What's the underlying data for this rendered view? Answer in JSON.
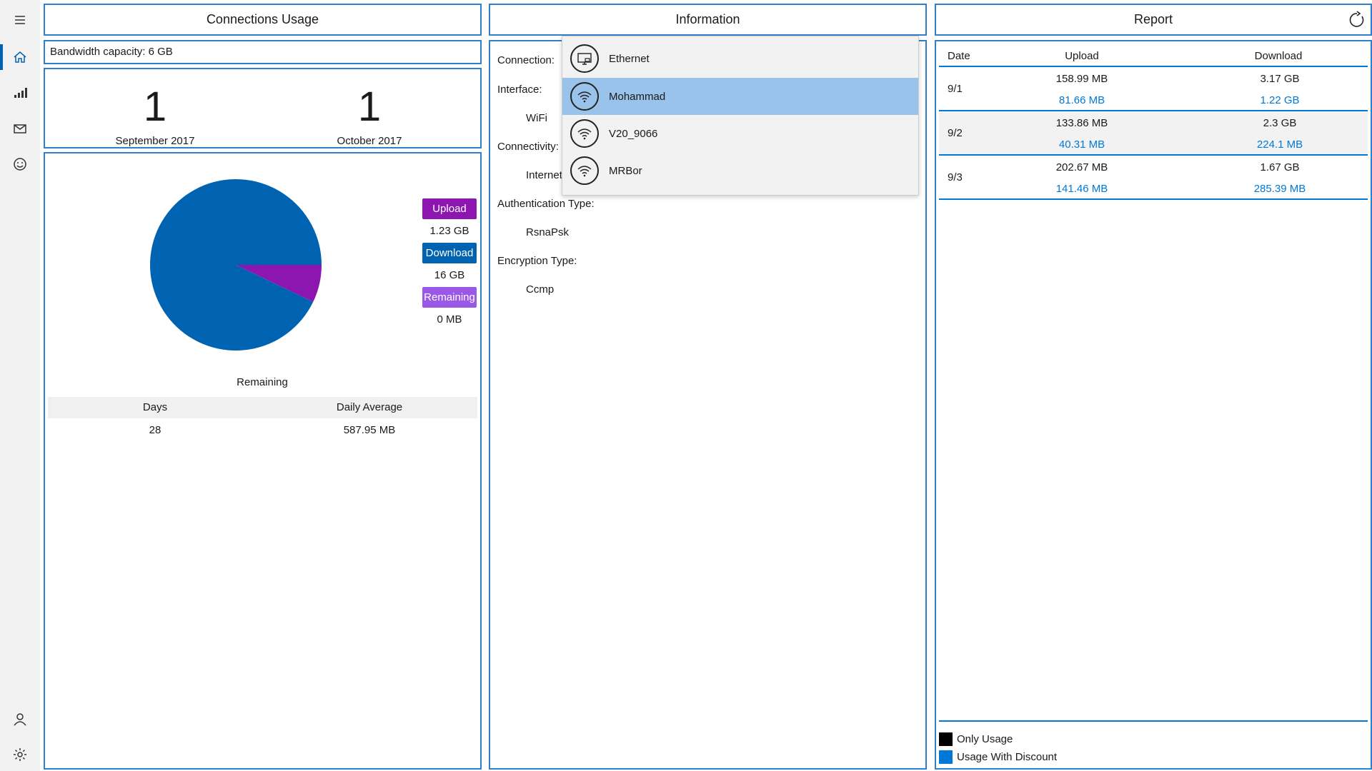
{
  "nav": {
    "items": [
      {
        "icon": "hamburger-icon"
      },
      {
        "icon": "home-icon"
      },
      {
        "icon": "signal-bars-icon"
      },
      {
        "icon": "mail-icon"
      },
      {
        "icon": "smiley-icon"
      },
      {
        "icon": "person-icon"
      },
      {
        "icon": "gear-icon"
      }
    ]
  },
  "usage": {
    "header": "Connections Usage",
    "bandwidth": "Bandwidth capacity: 6 GB",
    "counter1": {
      "value": "1",
      "label": "September 2017"
    },
    "counter2": {
      "value": "1",
      "label": "October 2017"
    },
    "legend": {
      "upload_label": "Upload",
      "upload_value": "1.23 GB",
      "download_label": "Download",
      "download_value": "16 GB",
      "remaining_label": "Remaining",
      "remaining_value": "0 MB"
    },
    "chart_caption": "Remaining",
    "stats": {
      "headers": [
        "Days",
        "Daily Average"
      ],
      "values": [
        "28",
        "587.95 MB"
      ]
    },
    "colors": {
      "upload": "#8e16b0",
      "download": "#0063b1",
      "remaining": "#9a57e8"
    }
  },
  "chart_data": {
    "type": "pie",
    "title": "",
    "slices": [
      {
        "name": "Download",
        "value": 16,
        "color": "#0063b1"
      },
      {
        "name": "Upload",
        "value": 1.23,
        "color": "#8e16b0"
      },
      {
        "name": "Remaining",
        "value": 0,
        "color": "#9a57e8"
      }
    ]
  },
  "info": {
    "header": "Information",
    "rows": [
      {
        "label": "Connection:",
        "value": ""
      },
      {
        "label": "Interface:",
        "value": "WiFi"
      },
      {
        "label": "Connectivity:",
        "value": "Internet"
      },
      {
        "label": "Authentication Type:",
        "value": "RsnaPsk"
      },
      {
        "label": "Encryption Type:",
        "value": "Ccmp"
      }
    ],
    "dropdown": [
      {
        "name": "Ethernet",
        "icon": "ethernet-icon"
      },
      {
        "name": "Mohammad",
        "icon": "wifi-icon",
        "selected": true
      },
      {
        "name": "V20_9066",
        "icon": "wifi-icon"
      },
      {
        "name": "MRBor",
        "icon": "wifi-icon"
      }
    ]
  },
  "report": {
    "header": "Report",
    "columns": [
      "Date",
      "Upload",
      "Download"
    ],
    "rows": [
      {
        "date": "9/1",
        "upload": "158.99 MB",
        "upload_discount": "81.66 MB",
        "download": "3.17 GB",
        "download_discount": "1.22 GB"
      },
      {
        "date": "9/2",
        "upload": "133.86 MB",
        "upload_discount": "40.31 MB",
        "download": "2.3 GB",
        "download_discount": "224.1 MB"
      },
      {
        "date": "9/3",
        "upload": "202.67 MB",
        "upload_discount": "141.46 MB",
        "download": "1.67 GB",
        "download_discount": "285.39 MB"
      }
    ],
    "legend": [
      {
        "label": "Only Usage",
        "color": "#000000"
      },
      {
        "label": "Usage With Discount",
        "color": "#0078d7"
      }
    ]
  }
}
